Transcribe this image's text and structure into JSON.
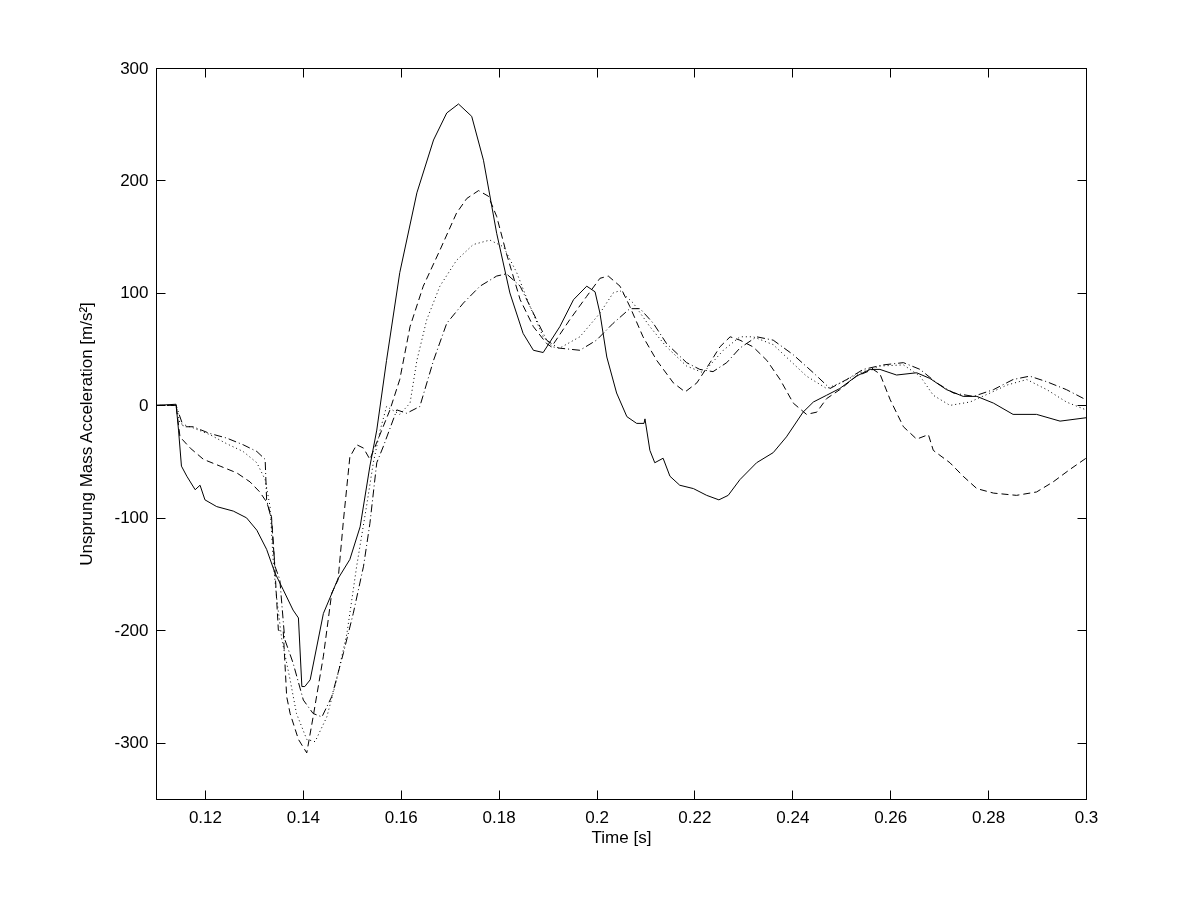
{
  "chart_data": {
    "type": "line",
    "xlabel": "Time [s]",
    "ylabel": "Unsprung Mass Acceleration [m/s²]",
    "xlim": [
      0.11,
      0.3
    ],
    "ylim": [
      -350,
      300
    ],
    "xticks": [
      0.12,
      0.14,
      0.16,
      0.18,
      0.2,
      0.22,
      0.24,
      0.26,
      0.28,
      0.3
    ],
    "yticks": [
      -300,
      -200,
      -100,
      0,
      100,
      200,
      300
    ],
    "grid": false,
    "series": [
      {
        "color": "#000000",
        "line_style": "solid",
        "x": [
          0.11,
          0.1141,
          0.1146,
          0.1152,
          0.1163,
          0.118,
          0.119,
          0.12,
          0.1224,
          0.1258,
          0.1285,
          0.1306,
          0.1326,
          0.1343,
          0.136,
          0.138,
          0.1391,
          0.1398,
          0.1404,
          0.1415,
          0.1442,
          0.1472,
          0.1496,
          0.1517,
          0.1537,
          0.1551,
          0.1571,
          0.1598,
          0.1633,
          0.1667,
          0.1694,
          0.1718,
          0.1745,
          0.1769,
          0.1796,
          0.1823,
          0.185,
          0.1871,
          0.1891,
          0.1925,
          0.1953,
          0.198,
          0.1997,
          0.2007,
          0.2021,
          0.2041,
          0.2062,
          0.2082,
          0.2097,
          0.2099,
          0.2109,
          0.2119,
          0.2136,
          0.215,
          0.217,
          0.2198,
          0.2225,
          0.225,
          0.2269,
          0.2293,
          0.2327,
          0.2361,
          0.2388,
          0.2422,
          0.2443,
          0.247,
          0.2497,
          0.2531,
          0.2559,
          0.2579,
          0.2613,
          0.2654,
          0.2681,
          0.2715,
          0.2749,
          0.2777,
          0.2811,
          0.2851,
          0.2899,
          0.2947,
          0.3
        ],
        "values": [
          0,
          1,
          -22,
          -54,
          -63,
          -75,
          -71,
          -84,
          -90,
          -94,
          -100,
          -111,
          -128,
          -149,
          -164,
          -182,
          -189,
          -250,
          -250,
          -244,
          -185,
          -154,
          -137,
          -108,
          -54,
          -22,
          40,
          118,
          189,
          236,
          260,
          268,
          257,
          218,
          153,
          100,
          64,
          49,
          47,
          70,
          94,
          106,
          101,
          82,
          43,
          11,
          -10,
          -16,
          -16,
          -12,
          -40,
          -51,
          -47,
          -63,
          -71,
          -74,
          -80,
          -84,
          -80,
          -66,
          -51,
          -42,
          -28,
          -6,
          3,
          9,
          15,
          26,
          32,
          32,
          27,
          29,
          24,
          14,
          8,
          8,
          2,
          -8,
          -8,
          -14,
          -11
        ]
      },
      {
        "color": "#000000",
        "line_style": "dashed",
        "x": [
          0.11,
          0.1141,
          0.1149,
          0.117,
          0.1197,
          0.1231,
          0.1265,
          0.1292,
          0.1312,
          0.1326,
          0.1336,
          0.1343,
          0.135,
          0.136,
          0.1367,
          0.1374,
          0.1391,
          0.1408,
          0.1421,
          0.1442,
          0.1459,
          0.1472,
          0.1483,
          0.1496,
          0.151,
          0.1524,
          0.1537,
          0.1578,
          0.1598,
          0.1619,
          0.1646,
          0.168,
          0.1714,
          0.1735,
          0.1759,
          0.1779,
          0.1796,
          0.1816,
          0.1844,
          0.1871,
          0.1898,
          0.1908,
          0.1945,
          0.198,
          0.2007,
          0.2024,
          0.2048,
          0.2068,
          0.2095,
          0.2123,
          0.2157,
          0.2181,
          0.2205,
          0.2232,
          0.2252,
          0.2273,
          0.2293,
          0.232,
          0.2348,
          0.2375,
          0.2402,
          0.2429,
          0.245,
          0.247,
          0.2497,
          0.2531,
          0.2565,
          0.2579,
          0.26,
          0.2627,
          0.2654,
          0.2678,
          0.2688,
          0.2722,
          0.2749,
          0.2777,
          0.2811,
          0.2858,
          0.2899,
          0.2933,
          0.2967,
          0.3
        ],
        "values": [
          0,
          0,
          -28,
          -38,
          -48,
          -54,
          -60,
          -68,
          -77,
          -86,
          -99,
          -146,
          -200,
          -201,
          -259,
          -274,
          -297,
          -309,
          -277,
          -223,
          -167,
          -155,
          -102,
          -46,
          -35,
          -38,
          -48,
          -4,
          23,
          70,
          106,
          138,
          171,
          184,
          191,
          186,
          168,
          135,
          94,
          70,
          55,
          52,
          76,
          97,
          113,
          115,
          106,
          88,
          61,
          40,
          20,
          12,
          20,
          38,
          52,
          61,
          58,
          52,
          40,
          23,
          2,
          -8,
          -6,
          6,
          14,
          26,
          32,
          28,
          5,
          -19,
          -30,
          -26,
          -40,
          -51,
          -63,
          -74,
          -78,
          -80,
          -77,
          -68,
          -57,
          -47
        ]
      },
      {
        "color": "#000000",
        "line_style": "dotted",
        "x": [
          0.11,
          0.1141,
          0.1149,
          0.1176,
          0.121,
          0.1244,
          0.1278,
          0.1306,
          0.1323,
          0.1333,
          0.134,
          0.1347,
          0.1357,
          0.1374,
          0.1387,
          0.1408,
          0.1425,
          0.1449,
          0.1469,
          0.149,
          0.151,
          0.153,
          0.1544,
          0.1558,
          0.1571,
          0.1598,
          0.1619,
          0.1633,
          0.1653,
          0.168,
          0.1714,
          0.1748,
          0.1782,
          0.181,
          0.1837,
          0.1864,
          0.1891,
          0.1911,
          0.1925,
          0.1966,
          0.2007,
          0.2034,
          0.2048,
          0.2075,
          0.2109,
          0.2143,
          0.2184,
          0.2218,
          0.2259,
          0.2293,
          0.232,
          0.2361,
          0.2395,
          0.2429,
          0.247,
          0.2504,
          0.2538,
          0.2579,
          0.2627,
          0.2661,
          0.2688,
          0.2722,
          0.2763,
          0.2804,
          0.2838,
          0.2879,
          0.292,
          0.296,
          0.3
        ],
        "values": [
          0,
          0,
          -16,
          -20,
          -26,
          -34,
          -41,
          -51,
          -66,
          -90,
          -142,
          -173,
          -208,
          -244,
          -274,
          -297,
          -299,
          -277,
          -244,
          -203,
          -143,
          -90,
          -51,
          -22,
          -1,
          -8,
          2,
          40,
          76,
          106,
          129,
          143,
          147,
          141,
          118,
          88,
          61,
          52,
          51,
          61,
          82,
          100,
          102,
          91,
          70,
          52,
          35,
          29,
          49,
          61,
          61,
          54,
          40,
          26,
          15,
          21,
          29,
          35,
          36,
          26,
          9,
          0,
          3,
          11,
          18,
          23,
          14,
          3,
          -4
        ]
      },
      {
        "color": "#000000",
        "line_style": "dashdot",
        "x": [
          0.11,
          0.1141,
          0.1156,
          0.1176,
          0.121,
          0.1244,
          0.1278,
          0.1306,
          0.1323,
          0.1326,
          0.1336,
          0.1343,
          0.1353,
          0.1363,
          0.138,
          0.1401,
          0.1421,
          0.1439,
          0.1459,
          0.1483,
          0.1503,
          0.1524,
          0.1537,
          0.1551,
          0.1564,
          0.1592,
          0.1612,
          0.1639,
          0.1667,
          0.1694,
          0.1728,
          0.1762,
          0.1796,
          0.1816,
          0.1844,
          0.1871,
          0.1898,
          0.1922,
          0.1966,
          0.2,
          0.2034,
          0.2068,
          0.2089,
          0.2116,
          0.2143,
          0.2184,
          0.2211,
          0.2238,
          0.2266,
          0.2293,
          0.2327,
          0.2361,
          0.2402,
          0.2443,
          0.2477,
          0.2511,
          0.2545,
          0.2586,
          0.2627,
          0.2661,
          0.2695,
          0.2729,
          0.277,
          0.2811,
          0.2851,
          0.2885,
          0.292,
          0.296,
          0.3
        ],
        "values": [
          0,
          0,
          -19,
          -19,
          -25,
          -29,
          -35,
          -41,
          -48,
          -84,
          -102,
          -143,
          -155,
          -208,
          -229,
          -262,
          -274,
          -277,
          -259,
          -220,
          -185,
          -143,
          -105,
          -51,
          -37,
          -4,
          -7,
          -1,
          40,
          73,
          91,
          106,
          115,
          117,
          106,
          82,
          58,
          51,
          49,
          58,
          73,
          86,
          86,
          73,
          55,
          38,
          32,
          30,
          38,
          51,
          61,
          58,
          45,
          29,
          15,
          23,
          32,
          36,
          38,
          32,
          20,
          11,
          8,
          14,
          23,
          26,
          21,
          14,
          5
        ]
      }
    ]
  }
}
